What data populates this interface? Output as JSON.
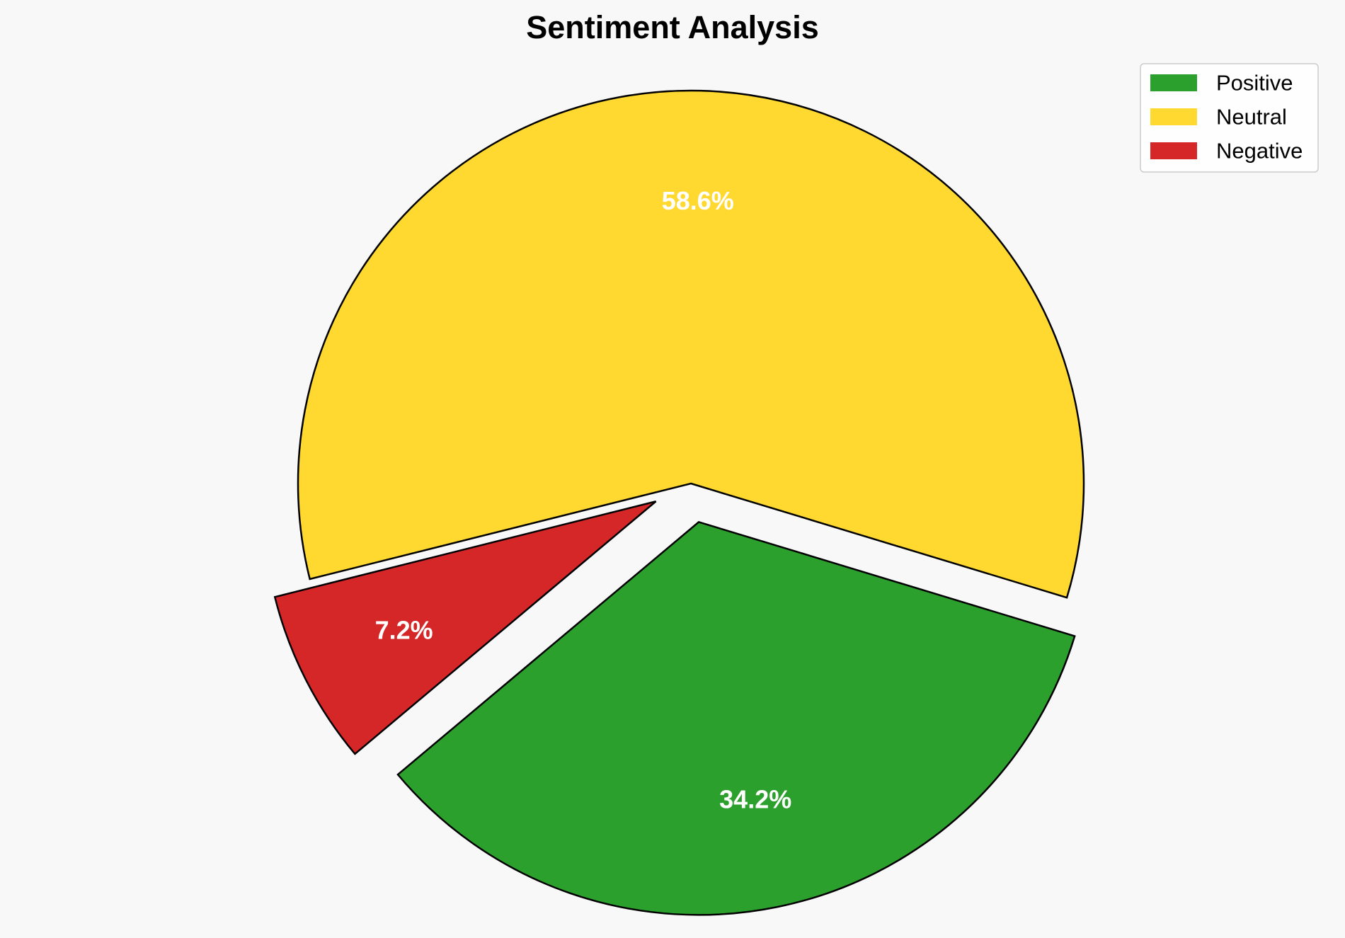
{
  "chart_data": {
    "type": "pie",
    "title": "Sentiment Analysis",
    "slices": [
      {
        "label": "Positive",
        "value": 34.2,
        "display": "34.2%",
        "color": "#2ca02c"
      },
      {
        "label": "Neutral",
        "value": 58.6,
        "display": "58.6%",
        "color": "#ffd92f"
      },
      {
        "label": "Negative",
        "value": 7.2,
        "display": "7.2%",
        "color": "#d62728"
      }
    ],
    "exploded": [
      "Positive",
      "Negative"
    ],
    "legend_position": "top-right",
    "edge_color": "#000000",
    "label_color": "#ffffff"
  }
}
